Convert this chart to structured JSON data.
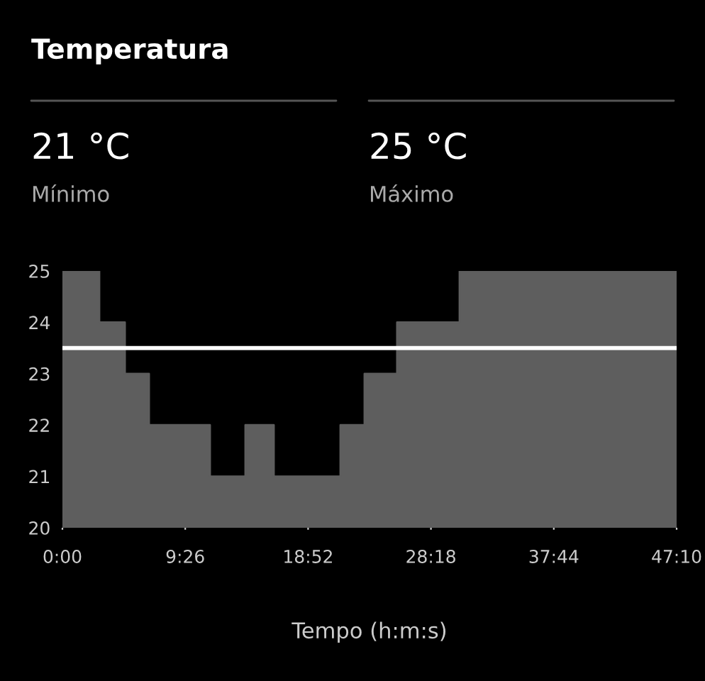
{
  "chart_data": {
    "type": "area",
    "title": "Temperatura",
    "xlabel": "Tempo (h:m:s)",
    "annotations": [
      "21 °C",
      "Mínimo",
      "25 °C",
      "Máximo"
    ],
    "x": [
      0,
      170,
      170,
      288,
      288,
      399,
      399,
      680,
      680,
      843,
      843,
      974,
      974,
      1281,
      1281,
      1392,
      1392,
      1542,
      1542,
      1830,
      1830,
      2830
    ],
    "series": [
      {
        "color": "#5e5e5e",
        "values": [
          25,
          25,
          24,
          24,
          23,
          23,
          22,
          22,
          21,
          21,
          22,
          22,
          21,
          21,
          22,
          22,
          23,
          23,
          24,
          24,
          25,
          25
        ]
      }
    ],
    "xlim": [
      0,
      2830
    ],
    "xticks": [
      {
        "value": 0,
        "label": "0:00"
      },
      {
        "value": 566,
        "label": "9:26"
      },
      {
        "value": 1132,
        "label": "18:52"
      },
      {
        "value": 1698,
        "label": "28:18"
      },
      {
        "value": 2264,
        "label": "37:44"
      },
      {
        "value": 2830,
        "label": "47:10"
      }
    ],
    "ylim": [
      20,
      25
    ],
    "yticks": [
      20,
      21,
      22,
      23,
      24,
      25
    ],
    "ref_lines": [
      {
        "axis": "y",
        "value": 23.5,
        "color": "#ffffff"
      }
    ],
    "grid": false
  }
}
